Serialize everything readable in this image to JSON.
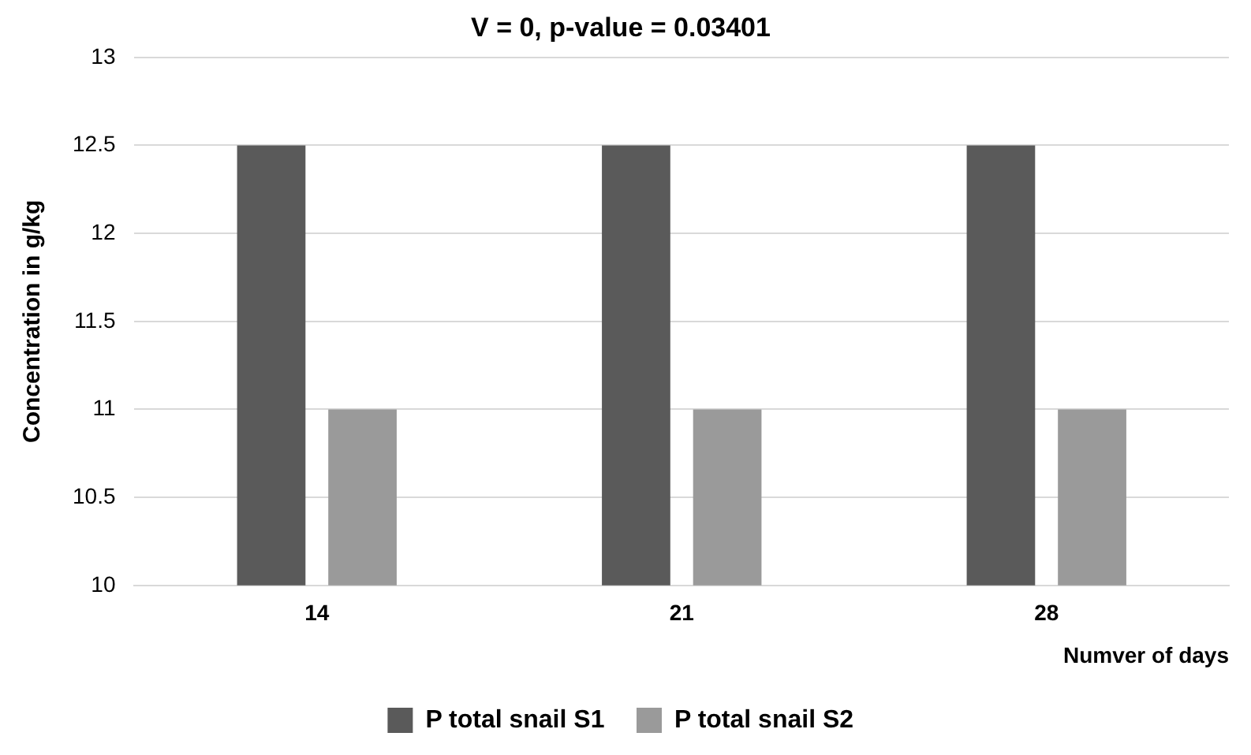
{
  "chart_data": {
    "type": "bar",
    "title": "V = 0, p-value = 0.03401",
    "xlabel": "Numver of days",
    "ylabel": "Concentration in g/kg",
    "categories": [
      "14",
      "21",
      "28"
    ],
    "series": [
      {
        "name": "P total snail S1",
        "color": "#5a5a5a",
        "values": [
          12.5,
          12.5,
          12.5
        ]
      },
      {
        "name": "P total snail S2",
        "color": "#9a9a9a",
        "values": [
          11,
          11,
          11
        ]
      }
    ],
    "ylim": [
      10,
      13
    ],
    "yticks": [
      10,
      10.5,
      11,
      11.5,
      12,
      12.5,
      13
    ],
    "grid": "y",
    "legend": "bottom"
  }
}
